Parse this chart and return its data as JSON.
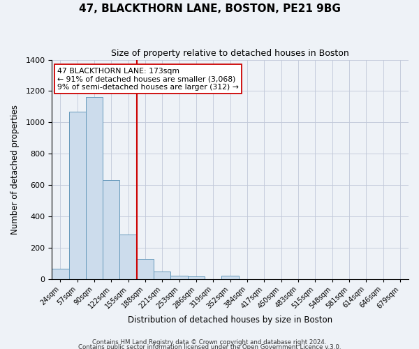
{
  "title": "47, BLACKTHORN LANE, BOSTON, PE21 9BG",
  "subtitle": "Size of property relative to detached houses in Boston",
  "xlabel": "Distribution of detached houses by size in Boston",
  "ylabel": "Number of detached properties",
  "bar_labels": [
    "24sqm",
    "57sqm",
    "90sqm",
    "122sqm",
    "155sqm",
    "188sqm",
    "221sqm",
    "253sqm",
    "286sqm",
    "319sqm",
    "352sqm",
    "384sqm",
    "417sqm",
    "450sqm",
    "483sqm",
    "515sqm",
    "548sqm",
    "581sqm",
    "614sqm",
    "646sqm",
    "679sqm"
  ],
  "bar_values": [
    65,
    1070,
    1160,
    630,
    285,
    130,
    47,
    20,
    15,
    0,
    20,
    0,
    0,
    0,
    0,
    0,
    0,
    0,
    0,
    0,
    0
  ],
  "bar_color": "#ccdcec",
  "bar_edge_color": "#6699bb",
  "vline_x": 4.5,
  "vline_color": "#cc0000",
  "ylim": [
    0,
    1400
  ],
  "yticks": [
    0,
    200,
    400,
    600,
    800,
    1000,
    1200,
    1400
  ],
  "annotation_box_text": "47 BLACKTHORN LANE: 173sqm\n← 91% of detached houses are smaller (3,068)\n9% of semi-detached houses are larger (312) →",
  "footer_line1": "Contains HM Land Registry data © Crown copyright and database right 2024.",
  "footer_line2": "Contains public sector information licensed under the Open Government Licence v.3.0.",
  "bg_color": "#eef2f7",
  "plot_bg_color": "#eef2f7",
  "grid_color": "#c0c8d8"
}
